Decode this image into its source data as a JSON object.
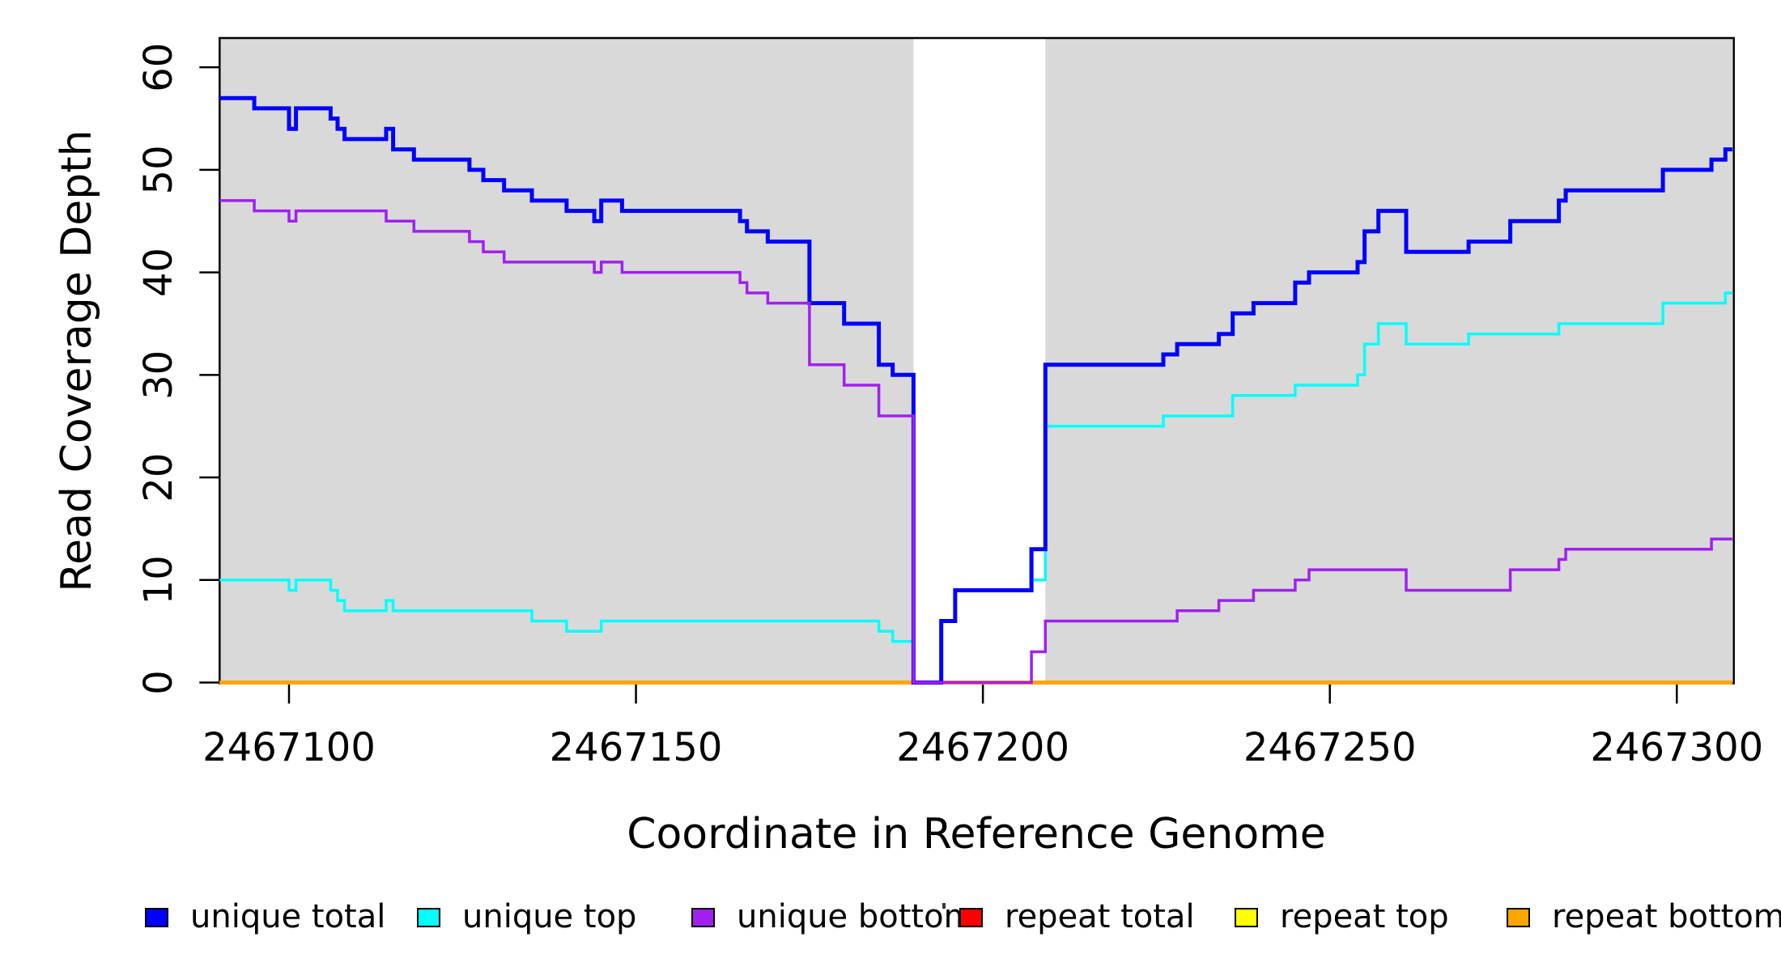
{
  "figure": {
    "background": "#ffffff",
    "plot_background_shaded": "#d9d9d9",
    "border_color": "#000000"
  },
  "chart_data": {
    "type": "line",
    "subtype": "step",
    "title": "",
    "xlabel": "Coordinate in Reference Genome",
    "ylabel": "Read Coverage Depth",
    "xlim": [
      2467090,
      2467308
    ],
    "ylim": [
      0,
      62.8
    ],
    "grid": false,
    "x_ticks": [
      2467100,
      2467150,
      2467200,
      2467250,
      2467300
    ],
    "x_tick_labels": [
      "2467100",
      "2467150",
      "2467200",
      "2467250",
      "2467300"
    ],
    "y_ticks": [
      0,
      10,
      20,
      30,
      40,
      50,
      60
    ],
    "y_tick_labels": [
      "0",
      "10",
      "20",
      "30",
      "40",
      "50",
      "60"
    ],
    "shaded_regions": [
      {
        "x0": 2467090,
        "x1": 2467190,
        "color": "#d9d9d9",
        "note": "left gray region"
      },
      {
        "x0": 2467209,
        "x1": 2467308,
        "color": "#d9d9d9",
        "note": "right gray region"
      }
    ],
    "white_gap_region": {
      "x0": 2467190,
      "x1": 2467209
    },
    "series": [
      {
        "name": "repeat total",
        "color": "#ff0000",
        "width": 3,
        "points": [
          [
            2467090,
            0
          ]
        ]
      },
      {
        "name": "repeat top",
        "color": "#ffff00",
        "width": 3,
        "points": [
          [
            2467090,
            0
          ]
        ]
      },
      {
        "name": "repeat bottom",
        "color": "#ffa500",
        "width": 5,
        "points": [
          [
            2467090,
            0
          ]
        ]
      },
      {
        "name": "unique top",
        "color": "#00ffff",
        "width": 3.5,
        "points": [
          [
            2467090,
            10
          ],
          [
            2467100,
            9
          ],
          [
            2467101,
            10
          ],
          [
            2467106,
            9
          ],
          [
            2467107,
            8
          ],
          [
            2467108,
            7
          ],
          [
            2467114,
            8
          ],
          [
            2467115,
            7
          ],
          [
            2467135,
            6
          ],
          [
            2467140,
            5
          ],
          [
            2467145,
            6
          ],
          [
            2467185,
            5
          ],
          [
            2467187,
            4
          ],
          [
            2467190,
            0
          ],
          [
            2467194,
            6
          ],
          [
            2467196,
            9
          ],
          [
            2467207,
            10
          ],
          [
            2467209,
            25
          ],
          [
            2467226,
            26
          ],
          [
            2467236,
            28
          ],
          [
            2467245,
            29
          ],
          [
            2467254,
            30
          ],
          [
            2467255,
            33
          ],
          [
            2467257,
            35
          ],
          [
            2467261,
            33
          ],
          [
            2467270,
            34
          ],
          [
            2467283,
            35
          ],
          [
            2467298,
            37
          ],
          [
            2467307,
            38
          ]
        ]
      },
      {
        "name": "unique total",
        "color": "#0000ff",
        "width": 5,
        "points": [
          [
            2467090,
            57
          ],
          [
            2467095,
            56
          ],
          [
            2467100,
            54
          ],
          [
            2467101,
            56
          ],
          [
            2467106,
            55
          ],
          [
            2467107,
            54
          ],
          [
            2467108,
            53
          ],
          [
            2467114,
            54
          ],
          [
            2467115,
            52
          ],
          [
            2467118,
            51
          ],
          [
            2467126,
            50
          ],
          [
            2467128,
            49
          ],
          [
            2467131,
            48
          ],
          [
            2467135,
            47
          ],
          [
            2467140,
            46
          ],
          [
            2467144,
            45
          ],
          [
            2467145,
            47
          ],
          [
            2467148,
            46
          ],
          [
            2467165,
            45
          ],
          [
            2467166,
            44
          ],
          [
            2467169,
            43
          ],
          [
            2467175,
            37
          ],
          [
            2467180,
            35
          ],
          [
            2467185,
            31
          ],
          [
            2467187,
            30
          ],
          [
            2467190,
            0
          ],
          [
            2467194,
            6
          ],
          [
            2467196,
            9
          ],
          [
            2467207,
            13
          ],
          [
            2467209,
            31
          ],
          [
            2467226,
            32
          ],
          [
            2467228,
            33
          ],
          [
            2467234,
            34
          ],
          [
            2467236,
            36
          ],
          [
            2467239,
            37
          ],
          [
            2467245,
            39
          ],
          [
            2467247,
            40
          ],
          [
            2467254,
            41
          ],
          [
            2467255,
            44
          ],
          [
            2467257,
            46
          ],
          [
            2467261,
            42
          ],
          [
            2467270,
            43
          ],
          [
            2467276,
            45
          ],
          [
            2467283,
            47
          ],
          [
            2467284,
            48
          ],
          [
            2467298,
            50
          ],
          [
            2467305,
            51
          ],
          [
            2467307,
            52
          ]
        ]
      },
      {
        "name": "unique bottom",
        "color": "#a020f0",
        "width": 3.5,
        "points": [
          [
            2467090,
            47
          ],
          [
            2467095,
            46
          ],
          [
            2467100,
            45
          ],
          [
            2467101,
            46
          ],
          [
            2467114,
            45
          ],
          [
            2467118,
            44
          ],
          [
            2467126,
            43
          ],
          [
            2467128,
            42
          ],
          [
            2467131,
            41
          ],
          [
            2467144,
            40
          ],
          [
            2467145,
            41
          ],
          [
            2467148,
            40
          ],
          [
            2467165,
            39
          ],
          [
            2467166,
            38
          ],
          [
            2467169,
            37
          ],
          [
            2467175,
            31
          ],
          [
            2467180,
            29
          ],
          [
            2467185,
            26
          ],
          [
            2467190,
            0
          ],
          [
            2467207,
            3
          ],
          [
            2467209,
            6
          ],
          [
            2467228,
            7
          ],
          [
            2467234,
            8
          ],
          [
            2467239,
            9
          ],
          [
            2467245,
            10
          ],
          [
            2467247,
            11
          ],
          [
            2467261,
            9
          ],
          [
            2467276,
            11
          ],
          [
            2467283,
            12
          ],
          [
            2467284,
            13
          ],
          [
            2467305,
            14
          ]
        ]
      }
    ],
    "legend": {
      "position": "bottom",
      "items": [
        {
          "label": "unique total",
          "color": "#0000ff"
        },
        {
          "label": "unique top",
          "color": "#00ffff"
        },
        {
          "label": "unique bottom",
          "color": "#a020f0"
        },
        {
          "label": "repeat total",
          "color": "#ff0000"
        },
        {
          "label": "repeat top",
          "color": "#ffff00"
        },
        {
          "label": "repeat bottom",
          "color": "#ffa500"
        }
      ]
    }
  }
}
